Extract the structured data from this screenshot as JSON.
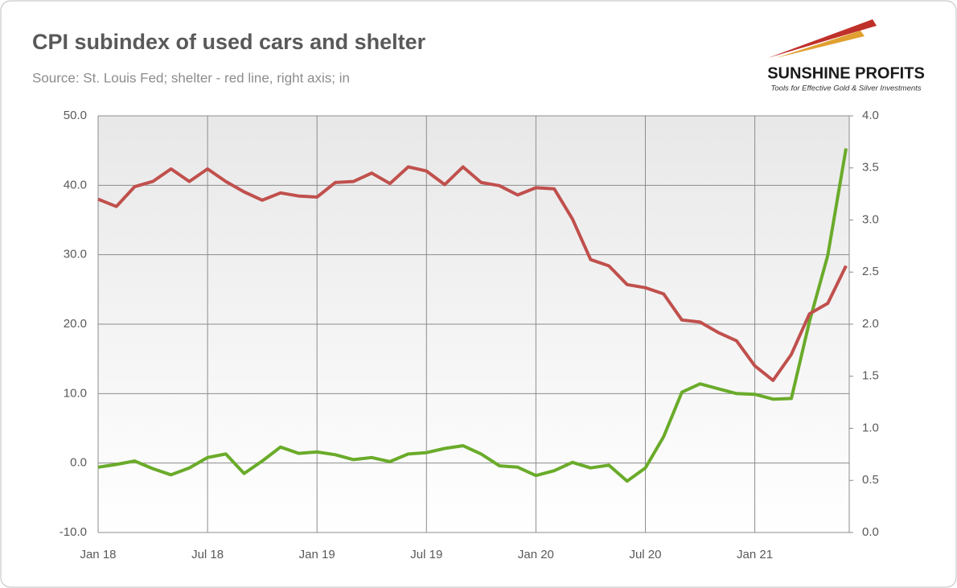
{
  "chart_data": {
    "type": "line",
    "title": "CPI subindex of used cars and shelter",
    "subtitle": "Source: St. Louis Fed; shelter - red line, right axis; in",
    "categories": [
      "Jan 18",
      null,
      null,
      null,
      null,
      null,
      "Jul 18",
      null,
      null,
      null,
      null,
      null,
      "Jan 19",
      null,
      null,
      null,
      null,
      null,
      "Jul 19",
      null,
      null,
      null,
      null,
      null,
      "Jan 20",
      null,
      null,
      null,
      null,
      null,
      "Jul 20",
      null,
      null,
      null,
      null,
      null,
      "Jan 21",
      null,
      null,
      null,
      null,
      null
    ],
    "series": [
      {
        "name": "Used cars",
        "color": "#6aab2a",
        "axis": "y",
        "values": [
          -0.6,
          -0.2,
          0.3,
          -0.8,
          -1.7,
          -0.7,
          0.8,
          1.3,
          -1.5,
          0.3,
          2.3,
          1.4,
          1.6,
          1.2,
          0.5,
          0.8,
          0.2,
          1.3,
          1.5,
          2.1,
          2.5,
          1.3,
          -0.4,
          -0.6,
          -1.8,
          -1.1,
          0.1,
          -0.7,
          -0.3,
          -2.6,
          -0.7,
          3.8,
          10.2,
          11.4,
          10.7,
          10.0,
          9.9,
          9.2,
          9.3,
          20.4,
          29.9,
          45.3
        ]
      },
      {
        "name": "Shelter",
        "color": "#c0504d",
        "axis": "y2",
        "values": [
          3.2,
          3.13,
          3.32,
          3.37,
          3.49,
          3.37,
          3.49,
          3.37,
          3.27,
          3.19,
          3.26,
          3.23,
          3.22,
          3.36,
          3.37,
          3.45,
          3.35,
          3.51,
          3.47,
          3.34,
          3.51,
          3.36,
          3.33,
          3.24,
          3.31,
          3.3,
          3.01,
          2.62,
          2.56,
          2.38,
          2.35,
          2.29,
          2.04,
          2.02,
          1.92,
          1.84,
          1.6,
          1.46,
          1.71,
          2.1,
          2.2,
          2.56
        ]
      }
    ],
    "ylim": [
      -10,
      50
    ],
    "yticks": [
      {
        "value": -10,
        "label": "-10.0"
      },
      {
        "value": 0,
        "label": "0.0"
      },
      {
        "value": 10,
        "label": "10.0"
      },
      {
        "value": 20,
        "label": "20.0"
      },
      {
        "value": 30,
        "label": "30.0"
      },
      {
        "value": 40,
        "label": "40.0"
      },
      {
        "value": 50,
        "label": "50.0"
      }
    ],
    "y2lim": [
      0,
      4
    ],
    "y2ticks": [
      {
        "value": 0,
        "label": "0.0"
      },
      {
        "value": 0.5,
        "label": "0.5"
      },
      {
        "value": 1,
        "label": "1.0"
      },
      {
        "value": 1.5,
        "label": "1.5"
      },
      {
        "value": 2,
        "label": "2.0"
      },
      {
        "value": 2.5,
        "label": "2.5"
      },
      {
        "value": 3,
        "label": "3.0"
      },
      {
        "value": 3.5,
        "label": "3.5"
      },
      {
        "value": 4,
        "label": "4.0"
      }
    ],
    "grid": true
  },
  "logo": {
    "name": "SUNSHINE PROFITS",
    "tagline": "Tools for Effective Gold & Silver Investments"
  }
}
